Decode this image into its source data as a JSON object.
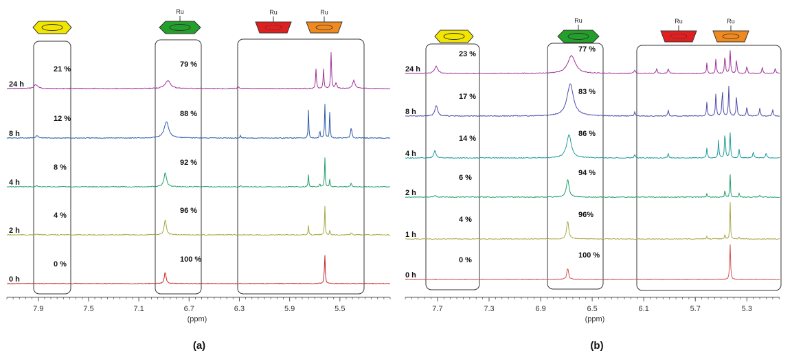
{
  "colors": {
    "benzene_icon": "#f2e600",
    "coordinated_icon": "#22a02a",
    "red_icon": "#e02020",
    "orange_icon": "#f08a1e"
  },
  "icons": [
    "benzene-icon",
    "ru-arene-icon",
    "ru-ring-red-icon",
    "ru-ring-orange-icon"
  ],
  "ru_text": "Ru",
  "chart_data": [
    {
      "panel_label": "(a)",
      "type": "line",
      "xlabel": "(ppm)",
      "xlim": [
        8.15,
        5.1
      ],
      "x_reversed": true,
      "xticks": [
        "7.9",
        "7.5",
        "7.1",
        "6.7",
        "6.3",
        "5.9",
        "5.5"
      ],
      "series": [
        {
          "name": "24 h",
          "color": "#a0309a",
          "free_pct": "21 %",
          "coord_pct": "79 %",
          "peaks": [
            {
              "x": 7.92,
              "h": 0.22,
              "w": 0.018
            },
            {
              "x": 6.87,
              "h": 0.45,
              "w": 0.025
            },
            {
              "x": 5.69,
              "h": 1.1,
              "w": 0.004
            },
            {
              "x": 5.63,
              "h": 1.1,
              "w": 0.004
            },
            {
              "x": 5.57,
              "h": 2.0,
              "w": 0.004
            },
            {
              "x": 5.53,
              "h": 0.3,
              "w": 0.008
            },
            {
              "x": 5.39,
              "h": 0.45,
              "w": 0.012
            },
            {
              "x": 6.31,
              "h": 0.1,
              "w": 0.006
            }
          ]
        },
        {
          "name": "8 h",
          "color": "#2a5aa8",
          "free_pct": "12 %",
          "coord_pct": "88 %",
          "peaks": [
            {
              "x": 7.91,
              "h": 0.12,
              "w": 0.012
            },
            {
              "x": 6.88,
              "h": 0.9,
              "w": 0.022
            },
            {
              "x": 5.75,
              "h": 1.6,
              "w": 0.003
            },
            {
              "x": 5.66,
              "h": 0.6,
              "w": 0.003
            },
            {
              "x": 5.62,
              "h": 2.0,
              "w": 0.003
            },
            {
              "x": 5.58,
              "h": 1.6,
              "w": 0.003
            },
            {
              "x": 5.41,
              "h": 0.6,
              "w": 0.006
            },
            {
              "x": 6.29,
              "h": 0.15,
              "w": 0.004
            }
          ]
        },
        {
          "name": "4 h",
          "color": "#1e9e6a",
          "free_pct": "8 %",
          "coord_pct": "92 %",
          "peaks": [
            {
              "x": 7.91,
              "h": 0.06,
              "w": 0.01
            },
            {
              "x": 6.89,
              "h": 0.8,
              "w": 0.012
            },
            {
              "x": 5.75,
              "h": 0.7,
              "w": 0.003
            },
            {
              "x": 5.66,
              "h": 0.25,
              "w": 0.003
            },
            {
              "x": 5.62,
              "h": 1.75,
              "w": 0.003
            },
            {
              "x": 5.58,
              "h": 0.45,
              "w": 0.003
            },
            {
              "x": 5.41,
              "h": 0.2,
              "w": 0.005
            },
            {
              "x": 6.29,
              "h": 0.08,
              "w": 0.004
            }
          ]
        },
        {
          "name": "2 h",
          "color": "#a5a83c",
          "free_pct": "4 %",
          "coord_pct": "96 %",
          "peaks": [
            {
              "x": 7.91,
              "h": 0.04,
              "w": 0.01
            },
            {
              "x": 6.89,
              "h": 0.85,
              "w": 0.01
            },
            {
              "x": 5.75,
              "h": 0.55,
              "w": 0.003
            },
            {
              "x": 5.62,
              "h": 1.7,
              "w": 0.003
            },
            {
              "x": 5.58,
              "h": 0.3,
              "w": 0.003
            },
            {
              "x": 5.41,
              "h": 0.12,
              "w": 0.005
            }
          ]
        },
        {
          "name": "0 h",
          "color": "#c02828",
          "free_pct": "0 %",
          "coord_pct": "100 %",
          "peaks": [
            {
              "x": 6.89,
              "h": 0.65,
              "w": 0.008
            },
            {
              "x": 5.62,
              "h": 1.65,
              "w": 0.004
            }
          ]
        }
      ]
    },
    {
      "panel_label": "(b)",
      "type": "line",
      "xlabel": "(ppm)",
      "xlim": [
        7.95,
        4.95
      ],
      "x_reversed": true,
      "xticks": [
        "7.7",
        "7.3",
        "6.9",
        "6.5",
        "6.1",
        "5.7",
        "5.3"
      ],
      "series": [
        {
          "name": "24 h",
          "color": "#a0309a",
          "free_pct": "23 %",
          "coord_pct": "77 %",
          "peaks": [
            {
              "x": 7.71,
              "h": 0.4,
              "w": 0.015
            },
            {
              "x": 6.66,
              "h": 1.0,
              "w": 0.035
            },
            {
              "x": 6.17,
              "h": 0.2,
              "w": 0.006
            },
            {
              "x": 6.0,
              "h": 0.25,
              "w": 0.006
            },
            {
              "x": 5.91,
              "h": 0.25,
              "w": 0.006
            },
            {
              "x": 5.61,
              "h": 0.6,
              "w": 0.004
            },
            {
              "x": 5.54,
              "h": 0.9,
              "w": 0.004
            },
            {
              "x": 5.47,
              "h": 1.1,
              "w": 0.004
            },
            {
              "x": 5.43,
              "h": 1.3,
              "w": 0.004
            },
            {
              "x": 5.38,
              "h": 0.8,
              "w": 0.004
            },
            {
              "x": 5.3,
              "h": 0.4,
              "w": 0.005
            },
            {
              "x": 5.18,
              "h": 0.35,
              "w": 0.005
            },
            {
              "x": 5.08,
              "h": 0.3,
              "w": 0.005
            }
          ]
        },
        {
          "name": "8 h",
          "color": "#4a4aaa",
          "free_pct": "17 %",
          "coord_pct": "83 %",
          "peaks": [
            {
              "x": 7.71,
              "h": 0.6,
              "w": 0.012
            },
            {
              "x": 6.67,
              "h": 1.8,
              "w": 0.03
            },
            {
              "x": 6.17,
              "h": 0.25,
              "w": 0.005
            },
            {
              "x": 5.91,
              "h": 0.3,
              "w": 0.005
            },
            {
              "x": 5.61,
              "h": 0.8,
              "w": 0.004
            },
            {
              "x": 5.54,
              "h": 1.4,
              "w": 0.004
            },
            {
              "x": 5.49,
              "h": 1.6,
              "w": 0.004
            },
            {
              "x": 5.44,
              "h": 1.7,
              "w": 0.004
            },
            {
              "x": 5.38,
              "h": 1.2,
              "w": 0.004
            },
            {
              "x": 5.3,
              "h": 0.5,
              "w": 0.005
            },
            {
              "x": 5.2,
              "h": 0.45,
              "w": 0.005
            },
            {
              "x": 5.1,
              "h": 0.35,
              "w": 0.005
            }
          ]
        },
        {
          "name": "4 h",
          "color": "#1e9a9a",
          "free_pct": "14 %",
          "coord_pct": "86 %",
          "peaks": [
            {
              "x": 7.72,
              "h": 0.4,
              "w": 0.01
            },
            {
              "x": 6.68,
              "h": 1.3,
              "w": 0.022
            },
            {
              "x": 6.17,
              "h": 0.2,
              "w": 0.005
            },
            {
              "x": 5.91,
              "h": 0.25,
              "w": 0.005
            },
            {
              "x": 5.61,
              "h": 0.6,
              "w": 0.004
            },
            {
              "x": 5.52,
              "h": 1.0,
              "w": 0.004
            },
            {
              "x": 5.47,
              "h": 1.6,
              "w": 0.004
            },
            {
              "x": 5.43,
              "h": 1.4,
              "w": 0.004
            },
            {
              "x": 5.36,
              "h": 0.5,
              "w": 0.004
            },
            {
              "x": 5.25,
              "h": 0.35,
              "w": 0.005
            },
            {
              "x": 5.15,
              "h": 0.3,
              "w": 0.005
            }
          ]
        },
        {
          "name": "2 h",
          "color": "#22a06a",
          "free_pct": "6 %",
          "coord_pct": "94 %",
          "peaks": [
            {
              "x": 7.72,
              "h": 0.08,
              "w": 0.01
            },
            {
              "x": 6.69,
              "h": 1.0,
              "w": 0.012
            },
            {
              "x": 5.61,
              "h": 0.2,
              "w": 0.004
            },
            {
              "x": 5.47,
              "h": 0.5,
              "w": 0.003
            },
            {
              "x": 5.43,
              "h": 1.3,
              "w": 0.003
            },
            {
              "x": 5.36,
              "h": 0.2,
              "w": 0.004
            },
            {
              "x": 5.2,
              "h": 0.12,
              "w": 0.004
            }
          ]
        },
        {
          "name": "1 h",
          "color": "#a9a84a",
          "free_pct": "4 %",
          "coord_pct": "96%",
          "peaks": [
            {
              "x": 6.69,
              "h": 1.0,
              "w": 0.01
            },
            {
              "x": 5.61,
              "h": 0.15,
              "w": 0.004
            },
            {
              "x": 5.47,
              "h": 0.35,
              "w": 0.003
            },
            {
              "x": 5.43,
              "h": 2.1,
              "w": 0.003
            },
            {
              "x": 5.36,
              "h": 0.12,
              "w": 0.004
            }
          ]
        },
        {
          "name": "0 h",
          "color": "#d05050",
          "free_pct": "0 %",
          "coord_pct": "100 %",
          "peaks": [
            {
              "x": 6.69,
              "h": 0.65,
              "w": 0.008
            },
            {
              "x": 5.43,
              "h": 2.0,
              "w": 0.004
            }
          ]
        }
      ]
    }
  ]
}
